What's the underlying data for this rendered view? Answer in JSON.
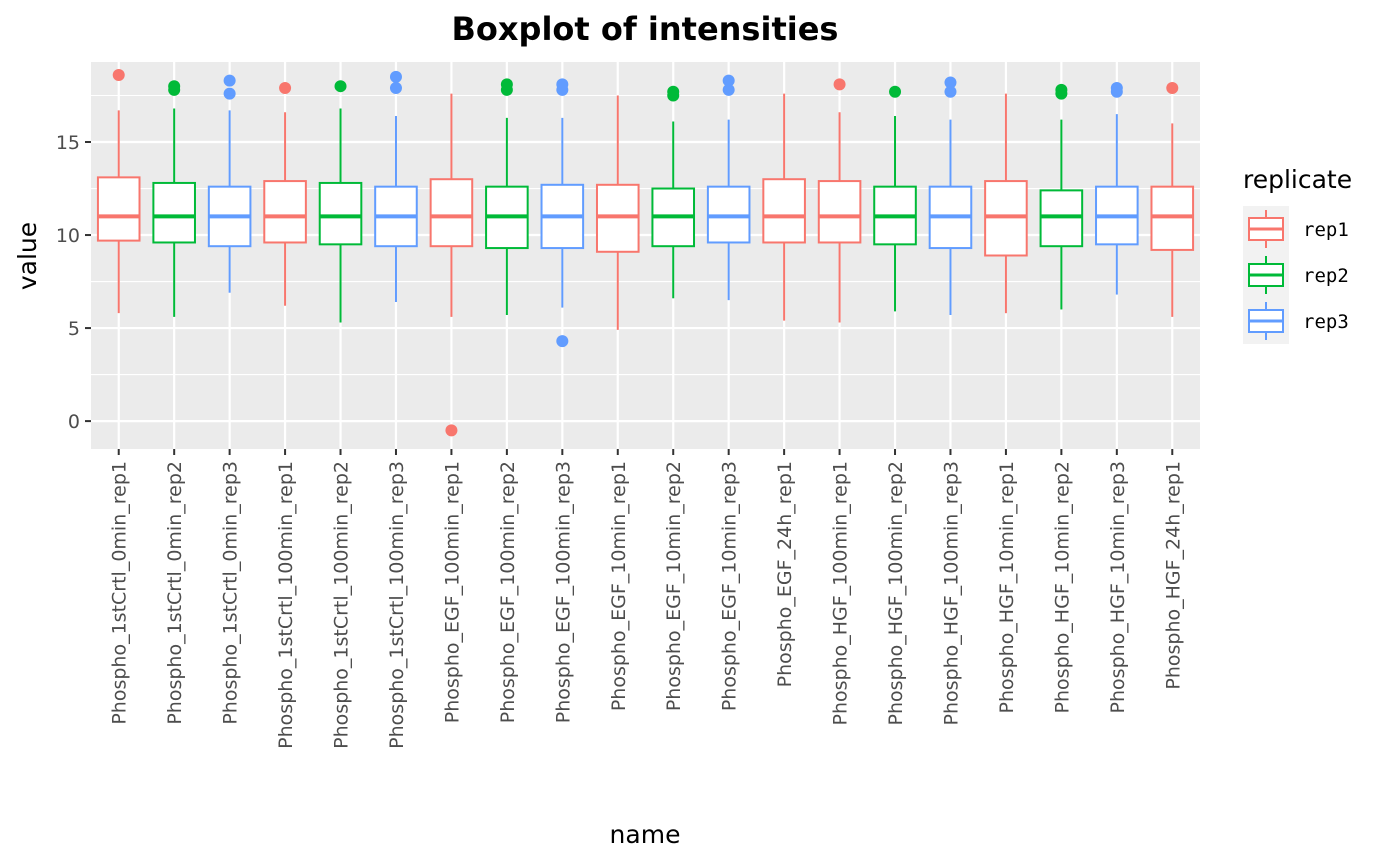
{
  "chart_data": {
    "type": "boxplot",
    "title": "Boxplot of intensities",
    "xlabel": "name",
    "ylabel": "value",
    "ylim": [
      -1.5,
      19.3
    ],
    "yticks": [
      0,
      5,
      10,
      15
    ],
    "grid": true,
    "legend": {
      "title": "replicate",
      "position": "right",
      "entries": [
        {
          "name": "rep1",
          "color": "#F8766D"
        },
        {
          "name": "rep2",
          "color": "#00BA38"
        },
        {
          "name": "rep3",
          "color": "#619CFF"
        }
      ]
    },
    "boxes": [
      {
        "name": "Phospho_1stCrtl_0min_rep1",
        "replicate": "rep1",
        "lower_whisker": 5.8,
        "q1": 9.7,
        "median": 11.0,
        "q3": 13.1,
        "upper_whisker": 16.7,
        "outliers": [
          18.6
        ]
      },
      {
        "name": "Phospho_1stCrtl_0min_rep2",
        "replicate": "rep2",
        "lower_whisker": 5.6,
        "q1": 9.6,
        "median": 11.0,
        "q3": 12.8,
        "upper_whisker": 16.8,
        "outliers": [
          17.8,
          18.0
        ]
      },
      {
        "name": "Phospho_1stCrtl_0min_rep3",
        "replicate": "rep3",
        "lower_whisker": 6.9,
        "q1": 9.4,
        "median": 11.0,
        "q3": 12.6,
        "upper_whisker": 16.7,
        "outliers": [
          17.6,
          18.3
        ]
      },
      {
        "name": "Phospho_1stCrtl_100min_rep1",
        "replicate": "rep1",
        "lower_whisker": 6.2,
        "q1": 9.6,
        "median": 11.0,
        "q3": 12.9,
        "upper_whisker": 16.6,
        "outliers": [
          17.9
        ]
      },
      {
        "name": "Phospho_1stCrtl_100min_rep2",
        "replicate": "rep2",
        "lower_whisker": 5.3,
        "q1": 9.5,
        "median": 11.0,
        "q3": 12.8,
        "upper_whisker": 16.8,
        "outliers": [
          18.0
        ]
      },
      {
        "name": "Phospho_1stCrtl_100min_rep3",
        "replicate": "rep3",
        "lower_whisker": 6.4,
        "q1": 9.4,
        "median": 11.0,
        "q3": 12.6,
        "upper_whisker": 16.4,
        "outliers": [
          17.9,
          18.5
        ]
      },
      {
        "name": "Phospho_EGF_100min_rep1",
        "replicate": "rep1",
        "lower_whisker": 5.6,
        "q1": 9.4,
        "median": 11.0,
        "q3": 13.0,
        "upper_whisker": 17.6,
        "outliers": [
          -0.5
        ]
      },
      {
        "name": "Phospho_EGF_100min_rep2",
        "replicate": "rep2",
        "lower_whisker": 5.7,
        "q1": 9.3,
        "median": 11.0,
        "q3": 12.6,
        "upper_whisker": 16.3,
        "outliers": [
          17.8,
          18.1
        ]
      },
      {
        "name": "Phospho_EGF_100min_rep3",
        "replicate": "rep3",
        "lower_whisker": 6.1,
        "q1": 9.3,
        "median": 11.0,
        "q3": 12.7,
        "upper_whisker": 16.3,
        "outliers": [
          4.3,
          17.8,
          18.1
        ]
      },
      {
        "name": "Phospho_EGF_10min_rep1",
        "replicate": "rep1",
        "lower_whisker": 4.9,
        "q1": 9.1,
        "median": 11.0,
        "q3": 12.7,
        "upper_whisker": 17.5,
        "outliers": []
      },
      {
        "name": "Phospho_EGF_10min_rep2",
        "replicate": "rep2",
        "lower_whisker": 6.6,
        "q1": 9.4,
        "median": 11.0,
        "q3": 12.5,
        "upper_whisker": 16.1,
        "outliers": [
          17.5,
          17.7
        ]
      },
      {
        "name": "Phospho_EGF_10min_rep3",
        "replicate": "rep3",
        "lower_whisker": 6.5,
        "q1": 9.6,
        "median": 11.0,
        "q3": 12.6,
        "upper_whisker": 16.2,
        "outliers": [
          17.8,
          18.3
        ]
      },
      {
        "name": "Phospho_EGF_24h_rep1",
        "replicate": "rep1",
        "lower_whisker": 5.4,
        "q1": 9.6,
        "median": 11.0,
        "q3": 13.0,
        "upper_whisker": 17.6,
        "outliers": []
      },
      {
        "name": "Phospho_HGF_100min_rep1",
        "replicate": "rep1",
        "lower_whisker": 5.3,
        "q1": 9.6,
        "median": 11.0,
        "q3": 12.9,
        "upper_whisker": 16.6,
        "outliers": [
          18.1
        ]
      },
      {
        "name": "Phospho_HGF_100min_rep2",
        "replicate": "rep2",
        "lower_whisker": 5.9,
        "q1": 9.5,
        "median": 11.0,
        "q3": 12.6,
        "upper_whisker": 16.4,
        "outliers": [
          17.7
        ]
      },
      {
        "name": "Phospho_HGF_100min_rep3",
        "replicate": "rep3",
        "lower_whisker": 5.7,
        "q1": 9.3,
        "median": 11.0,
        "q3": 12.6,
        "upper_whisker": 16.2,
        "outliers": [
          17.7,
          18.2
        ]
      },
      {
        "name": "Phospho_HGF_10min_rep1",
        "replicate": "rep1",
        "lower_whisker": 5.8,
        "q1": 8.9,
        "median": 11.0,
        "q3": 12.9,
        "upper_whisker": 17.6,
        "outliers": []
      },
      {
        "name": "Phospho_HGF_10min_rep2",
        "replicate": "rep2",
        "lower_whisker": 6.0,
        "q1": 9.4,
        "median": 11.0,
        "q3": 12.4,
        "upper_whisker": 16.2,
        "outliers": [
          17.6,
          17.8
        ]
      },
      {
        "name": "Phospho_HGF_10min_rep3",
        "replicate": "rep3",
        "lower_whisker": 6.8,
        "q1": 9.5,
        "median": 11.0,
        "q3": 12.6,
        "upper_whisker": 16.5,
        "outliers": [
          17.7,
          17.9
        ]
      },
      {
        "name": "Phospho_HGF_24h_rep1",
        "replicate": "rep1",
        "lower_whisker": 5.6,
        "q1": 9.2,
        "median": 11.0,
        "q3": 12.6,
        "upper_whisker": 16.0,
        "outliers": [
          17.9
        ]
      }
    ]
  }
}
